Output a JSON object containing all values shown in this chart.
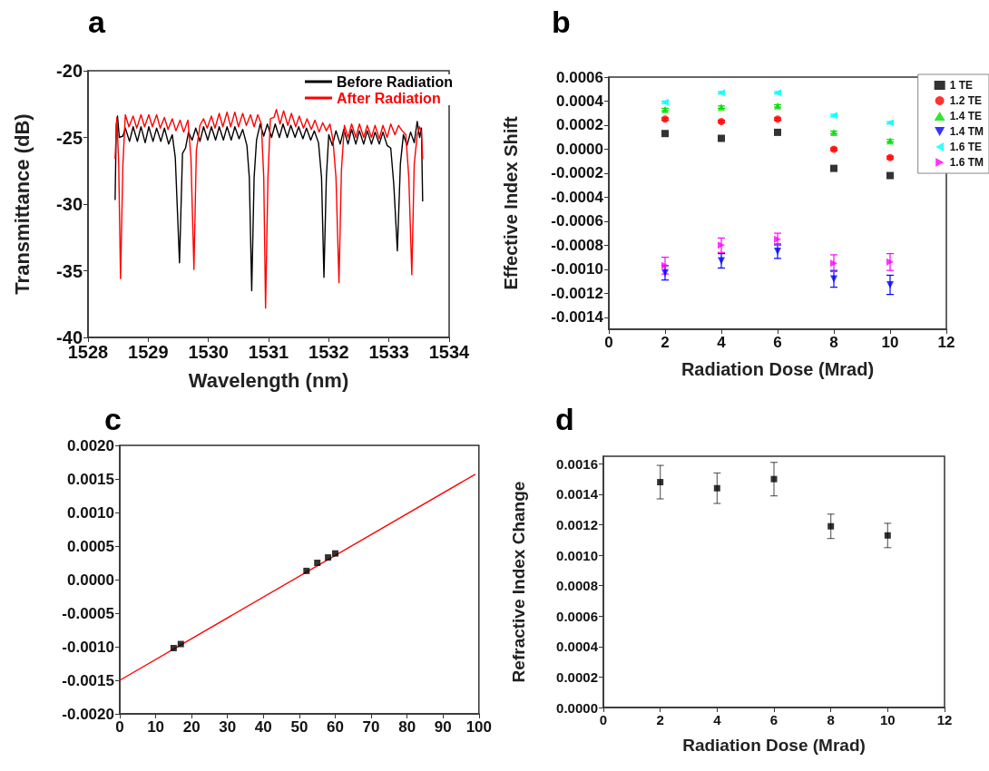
{
  "chart_data": [
    {
      "type": "line",
      "title": "a",
      "xlabel": "Wavelength (nm)",
      "ylabel": "Transmittance (dB)",
      "xlim": [
        1528,
        1534
      ],
      "xticks": [
        1528,
        1529,
        1530,
        1531,
        1532,
        1533,
        1534
      ],
      "ylim": [
        -40,
        -20
      ],
      "yticks": [
        -40,
        -35,
        -30,
        -25,
        -20
      ],
      "legend": "top right",
      "marker": "none",
      "series": [
        {
          "name": "Before Radiation",
          "color": "#000000",
          "x": [
            1528.45,
            1528.47,
            1528.49,
            1528.52,
            1528.58,
            1528.62,
            1528.69,
            1528.75,
            1528.82,
            1528.88,
            1528.95,
            1529.01,
            1529.08,
            1529.14,
            1529.21,
            1529.27,
            1529.34,
            1529.4,
            1529.45,
            1529.52,
            1529.57,
            1529.62,
            1529.67,
            1529.73,
            1529.79,
            1529.86,
            1529.92,
            1529.99,
            1530.05,
            1530.12,
            1530.18,
            1530.25,
            1530.31,
            1530.38,
            1530.44,
            1530.51,
            1530.57,
            1530.64,
            1530.68,
            1530.72,
            1530.76,
            1530.8,
            1530.86,
            1530.92,
            1530.98,
            1531.05,
            1531.11,
            1531.18,
            1531.24,
            1531.31,
            1531.37,
            1531.44,
            1531.5,
            1531.57,
            1531.63,
            1531.7,
            1531.76,
            1531.83,
            1531.88,
            1531.92,
            1531.96,
            1532.0,
            1532.06,
            1532.12,
            1532.19,
            1532.25,
            1532.32,
            1532.38,
            1532.45,
            1532.51,
            1532.58,
            1532.64,
            1532.71,
            1532.77,
            1532.84,
            1532.9,
            1532.97,
            1533.03,
            1533.08,
            1533.14,
            1533.19,
            1533.24,
            1533.3,
            1533.36,
            1533.42,
            1533.47,
            1533.51,
            1533.54,
            1533.56
          ],
          "values": [
            -29.7,
            -24.0,
            -23.4,
            -25.0,
            -24.9,
            -24.3,
            -25.3,
            -24.2,
            -25.3,
            -24.2,
            -25.4,
            -24.2,
            -25.3,
            -24.3,
            -25.3,
            -24.3,
            -25.5,
            -24.8,
            -26.5,
            -34.4,
            -26.2,
            -25.8,
            -24.6,
            -25.2,
            -24.3,
            -25.3,
            -24.2,
            -25.2,
            -24.2,
            -25.2,
            -24.2,
            -25.2,
            -24.2,
            -25.2,
            -24.2,
            -25.1,
            -24.4,
            -25.6,
            -28.0,
            -36.5,
            -28.0,
            -25.2,
            -24.0,
            -24.9,
            -24.0,
            -25.0,
            -24.0,
            -25.0,
            -24.0,
            -25.0,
            -24.1,
            -25.0,
            -24.2,
            -25.1,
            -24.3,
            -25.2,
            -24.5,
            -25.4,
            -28.0,
            -35.5,
            -28.0,
            -24.8,
            -25.6,
            -24.5,
            -25.5,
            -24.4,
            -25.5,
            -24.4,
            -25.5,
            -24.5,
            -25.5,
            -24.5,
            -25.5,
            -24.6,
            -25.5,
            -24.6,
            -25.6,
            -25.8,
            -28.5,
            -33.5,
            -27.0,
            -24.8,
            -25.6,
            -24.6,
            -25.4,
            -23.8,
            -25.0,
            -24.3,
            -29.8
          ]
        },
        {
          "name": "After Radiation",
          "color": "#ff0000",
          "x": [
            1528.45,
            1528.48,
            1528.51,
            1528.54,
            1528.58,
            1528.62,
            1528.68,
            1528.75,
            1528.81,
            1528.88,
            1528.94,
            1529.01,
            1529.07,
            1529.14,
            1529.2,
            1529.27,
            1529.33,
            1529.4,
            1529.46,
            1529.53,
            1529.59,
            1529.66,
            1529.71,
            1529.76,
            1529.8,
            1529.86,
            1529.92,
            1529.98,
            1530.05,
            1530.11,
            1530.18,
            1530.24,
            1530.31,
            1530.37,
            1530.44,
            1530.5,
            1530.57,
            1530.63,
            1530.7,
            1530.76,
            1530.82,
            1530.88,
            1530.92,
            1530.95,
            1530.99,
            1531.03,
            1531.09,
            1531.13,
            1531.19,
            1531.25,
            1531.32,
            1531.38,
            1531.45,
            1531.51,
            1531.58,
            1531.64,
            1531.71,
            1531.77,
            1531.84,
            1531.9,
            1531.96,
            1532.02,
            1532.07,
            1532.12,
            1532.17,
            1532.21,
            1532.26,
            1532.32,
            1532.38,
            1532.45,
            1532.51,
            1532.58,
            1532.64,
            1532.71,
            1532.77,
            1532.84,
            1532.9,
            1532.97,
            1533.03,
            1533.1,
            1533.16,
            1533.22,
            1533.28,
            1533.33,
            1533.38,
            1533.42,
            1533.47,
            1533.51,
            1533.54,
            1533.56
          ],
          "values": [
            -26.6,
            -23.5,
            -27.0,
            -35.6,
            -27.0,
            -23.3,
            -24.2,
            -23.4,
            -24.3,
            -23.3,
            -24.2,
            -23.3,
            -24.2,
            -23.3,
            -24.3,
            -23.5,
            -24.4,
            -23.6,
            -24.5,
            -23.7,
            -24.6,
            -23.7,
            -26.5,
            -34.9,
            -26.0,
            -24.1,
            -23.6,
            -24.3,
            -23.4,
            -24.3,
            -23.2,
            -24.2,
            -23.1,
            -24.2,
            -23.1,
            -24.2,
            -23.2,
            -24.1,
            -23.3,
            -24.2,
            -23.3,
            -24.0,
            -28.0,
            -37.8,
            -28.0,
            -23.6,
            -23.5,
            -22.9,
            -24.0,
            -23.0,
            -24.1,
            -23.2,
            -24.2,
            -23.4,
            -24.3,
            -23.6,
            -24.4,
            -23.7,
            -24.6,
            -23.9,
            -24.5,
            -24.0,
            -25.2,
            -28.0,
            -35.9,
            -27.5,
            -24.1,
            -25.0,
            -24.0,
            -25.0,
            -24.0,
            -25.0,
            -24.1,
            -25.0,
            -24.1,
            -25.1,
            -24.1,
            -25.0,
            -24.0,
            -24.8,
            -24.1,
            -24.5,
            -24.8,
            -28.0,
            -35.3,
            -27.0,
            -24.8,
            -24.2,
            -24.6,
            -26.6
          ]
        }
      ]
    },
    {
      "type": "scatter",
      "title": "b",
      "xlabel": "Radiation Dose (Mrad)",
      "ylabel": "Effective Index Shift",
      "x": [
        2,
        4,
        6,
        8,
        10
      ],
      "xlim": [
        0,
        12
      ],
      "xticks": [
        0,
        2,
        4,
        6,
        8,
        10,
        12
      ],
      "ylim": [
        -0.0015,
        0.0006
      ],
      "yticks": [
        {
          "value": -0.0014,
          "label": "-0.0014"
        },
        {
          "value": -0.0012,
          "label": "-0.0012"
        },
        {
          "value": -0.001,
          "label": "-0.0010"
        },
        {
          "value": -0.0008,
          "label": "-0.0008"
        },
        {
          "value": -0.0006,
          "label": "-0.0006"
        },
        {
          "value": -0.0004,
          "label": "-0.0004"
        },
        {
          "value": -0.0002,
          "label": "-0.0002"
        },
        {
          "value": 0,
          "label": "0.0000"
        },
        {
          "value": 0.0002,
          "label": "0.0002"
        },
        {
          "value": 0.0004,
          "label": "0.0004"
        },
        {
          "value": 0.0006,
          "label": "0.0006"
        }
      ],
      "legend": "top right",
      "series": [
        {
          "name": "1 TE",
          "color": "#000000",
          "marker": "square",
          "values": [
            0.00013,
            9e-05,
            0.00014,
            -0.00016,
            -0.00022
          ]
        },
        {
          "name": "1.2 TE",
          "color": "#ff0000",
          "marker": "circle",
          "values": [
            0.00025,
            0.00023,
            0.00025,
            0.0,
            -7e-05
          ],
          "errors": [
            1e-05,
            1e-05,
            1e-05,
            1e-05,
            1e-05
          ]
        },
        {
          "name": "1.4 TE",
          "color": "#00dd00",
          "marker": "triangle",
          "values": [
            0.00033,
            0.00035,
            0.00036,
            0.00014,
            7e-05
          ],
          "errors": [
            1e-05,
            1e-05,
            1e-05,
            1e-05,
            1e-05
          ]
        },
        {
          "name": "1.4 TM",
          "color": "#0000ff",
          "marker": "triangle-down",
          "values": [
            -0.00103,
            -0.00093,
            -0.00085,
            -0.00108,
            -0.00113
          ],
          "errors": [
            6e-05,
            6e-05,
            6e-05,
            7e-05,
            8e-05
          ]
        },
        {
          "name": "1.6 TE",
          "color": "#00ffff",
          "marker": "triangle-left",
          "values": [
            0.00039,
            0.00047,
            0.00047,
            0.00028,
            0.00022
          ],
          "errors": [
            1e-05,
            1e-05,
            1e-05,
            1e-05,
            1e-05
          ]
        },
        {
          "name": "1.6 TM",
          "color": "#ff00ff",
          "marker": "triangle-right",
          "values": [
            -0.00097,
            -0.0008,
            -0.00075,
            -0.00095,
            -0.00094
          ],
          "errors": [
            7e-05,
            6e-05,
            5e-05,
            7e-05,
            7e-05
          ]
        }
      ]
    },
    {
      "type": "scatter",
      "title": "c",
      "xlim": [
        0,
        100
      ],
      "xticks": [
        0,
        10,
        20,
        30,
        40,
        50,
        60,
        70,
        80,
        90,
        100
      ],
      "ylim": [
        -0.002,
        0.002
      ],
      "yticks": [
        {
          "value": -0.002,
          "label": "-0.0020"
        },
        {
          "value": -0.0015,
          "label": "-0.0015"
        },
        {
          "value": -0.001,
          "label": "-0.0010"
        },
        {
          "value": -0.0005,
          "label": "-0.0005"
        },
        {
          "value": 0,
          "label": "0.0000"
        },
        {
          "value": 0.0005,
          "label": "0.0005"
        },
        {
          "value": 0.001,
          "label": "0.0010"
        },
        {
          "value": 0.0015,
          "label": "0.0015"
        },
        {
          "value": 0.002,
          "label": "0.0020"
        }
      ],
      "series": [
        {
          "type": "line",
          "color": "#ff0000",
          "marker": "none",
          "x": [
            0,
            99
          ],
          "values": [
            -0.0015,
            0.00157
          ]
        },
        {
          "type": "scatter",
          "color": "#000000",
          "marker": "square",
          "x": [
            15,
            17,
            52,
            55,
            58,
            60
          ],
          "values": [
            -0.00102,
            -0.00096,
            0.00013,
            0.00025,
            0.00033,
            0.00039
          ]
        }
      ]
    },
    {
      "type": "scatter",
      "title": "d",
      "xlabel": "Radiation Dose (Mrad)",
      "ylabel": "Refractive Index Change",
      "x": [
        2,
        4,
        6,
        8,
        10
      ],
      "xlim": [
        0,
        12
      ],
      "xticks": [
        0,
        2,
        4,
        6,
        8,
        10,
        12
      ],
      "ylim": [
        0,
        0.00165
      ],
      "yticks": [
        {
          "value": 0,
          "label": "0.0000"
        },
        {
          "value": 0.0002,
          "label": "0.0002"
        },
        {
          "value": 0.0004,
          "label": "0.0004"
        },
        {
          "value": 0.0006,
          "label": "0.0006"
        },
        {
          "value": 0.0008,
          "label": "0.0008"
        },
        {
          "value": 0.001,
          "label": "0.0010"
        },
        {
          "value": 0.0012,
          "label": "0.0012"
        },
        {
          "value": 0.0014,
          "label": "0.0014"
        },
        {
          "value": 0.0016,
          "label": "0.0016"
        }
      ],
      "series": [
        {
          "color": "#000000",
          "marker": "square",
          "values": [
            0.00148,
            0.00144,
            0.0015,
            0.00119,
            0.00113
          ],
          "errors": [
            0.00011,
            0.0001,
            0.00011,
            8e-05,
            8e-05
          ]
        }
      ]
    }
  ]
}
